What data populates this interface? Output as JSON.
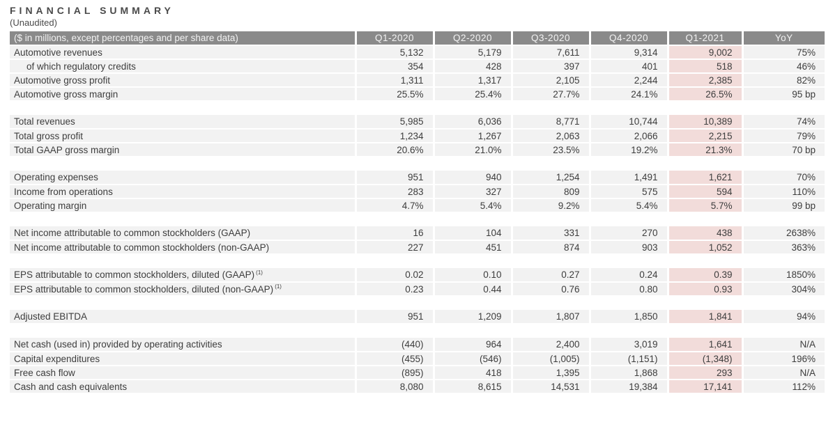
{
  "page": {
    "title": "FINANCIAL SUMMARY",
    "subtitle": "(Unaudited)"
  },
  "colors": {
    "header_bg": "#8a8a8a",
    "header_text": "#f2f2f2",
    "row_bg": "#f2f2f2",
    "highlight_bg": "#f2dcda",
    "text": "#3d3d3d"
  },
  "table": {
    "header_label": "($ in millions, except percentages and per share data)",
    "columns": [
      "Q1-2020",
      "Q2-2020",
      "Q3-2020",
      "Q4-2020",
      "Q1-2021",
      "YoY"
    ],
    "highlight_column_index": 4,
    "rows": [
      {
        "label": "Automotive revenues",
        "values": [
          "5,132",
          "5,179",
          "7,611",
          "9,314",
          "9,002",
          "75%"
        ]
      },
      {
        "label": "of which regulatory credits",
        "indent": true,
        "values": [
          "354",
          "428",
          "397",
          "401",
          "518",
          "46%"
        ]
      },
      {
        "label": "Automotive gross profit",
        "values": [
          "1,311",
          "1,317",
          "2,105",
          "2,244",
          "2,385",
          "82%"
        ]
      },
      {
        "label": "Automotive gross margin",
        "values": [
          "25.5%",
          "25.4%",
          "27.7%",
          "24.1%",
          "26.5%",
          "95 bp"
        ]
      },
      {
        "type": "gap"
      },
      {
        "label": "Total revenues",
        "values": [
          "5,985",
          "6,036",
          "8,771",
          "10,744",
          "10,389",
          "74%"
        ]
      },
      {
        "label": "Total gross profit",
        "values": [
          "1,234",
          "1,267",
          "2,063",
          "2,066",
          "2,215",
          "79%"
        ]
      },
      {
        "label": "Total GAAP gross margin",
        "values": [
          "20.6%",
          "21.0%",
          "23.5%",
          "19.2%",
          "21.3%",
          "70 bp"
        ]
      },
      {
        "type": "gap"
      },
      {
        "label": "Operating expenses",
        "values": [
          "951",
          "940",
          "1,254",
          "1,491",
          "1,621",
          "70%"
        ]
      },
      {
        "label": "Income from operations",
        "values": [
          "283",
          "327",
          "809",
          "575",
          "594",
          "110%"
        ]
      },
      {
        "label": "Operating margin",
        "values": [
          "4.7%",
          "5.4%",
          "9.2%",
          "5.4%",
          "5.7%",
          "99 bp"
        ]
      },
      {
        "type": "gap"
      },
      {
        "label": "Net income attributable to common stockholders (GAAP)",
        "values": [
          "16",
          "104",
          "331",
          "270",
          "438",
          "2638%"
        ]
      },
      {
        "label": "Net income attributable to common stockholders (non-GAAP)",
        "values": [
          "227",
          "451",
          "874",
          "903",
          "1,052",
          "363%"
        ]
      },
      {
        "type": "gap"
      },
      {
        "label": "EPS attributable to common stockholders, diluted (GAAP)",
        "sup": "(1)",
        "values": [
          "0.02",
          "0.10",
          "0.27",
          "0.24",
          "0.39",
          "1850%"
        ]
      },
      {
        "label": "EPS attributable to common stockholders, diluted (non-GAAP)",
        "sup": "(1)",
        "values": [
          "0.23",
          "0.44",
          "0.76",
          "0.80",
          "0.93",
          "304%"
        ]
      },
      {
        "type": "gap"
      },
      {
        "label": "Adjusted EBITDA",
        "values": [
          "951",
          "1,209",
          "1,807",
          "1,850",
          "1,841",
          "94%"
        ]
      },
      {
        "type": "gap"
      },
      {
        "label": "Net cash (used in) provided by operating activities",
        "values": [
          "(440)",
          "964",
          "2,400",
          "3,019",
          "1,641",
          "N/A"
        ]
      },
      {
        "label": "Capital expenditures",
        "values": [
          "(455)",
          "(546)",
          "(1,005)",
          "(1,151)",
          "(1,348)",
          "196%"
        ]
      },
      {
        "label": "Free cash flow",
        "values": [
          "(895)",
          "418",
          "1,395",
          "1,868",
          "293",
          "N/A"
        ]
      },
      {
        "label": "Cash and cash equivalents",
        "values": [
          "8,080",
          "8,615",
          "14,531",
          "19,384",
          "17,141",
          "112%"
        ]
      }
    ]
  }
}
